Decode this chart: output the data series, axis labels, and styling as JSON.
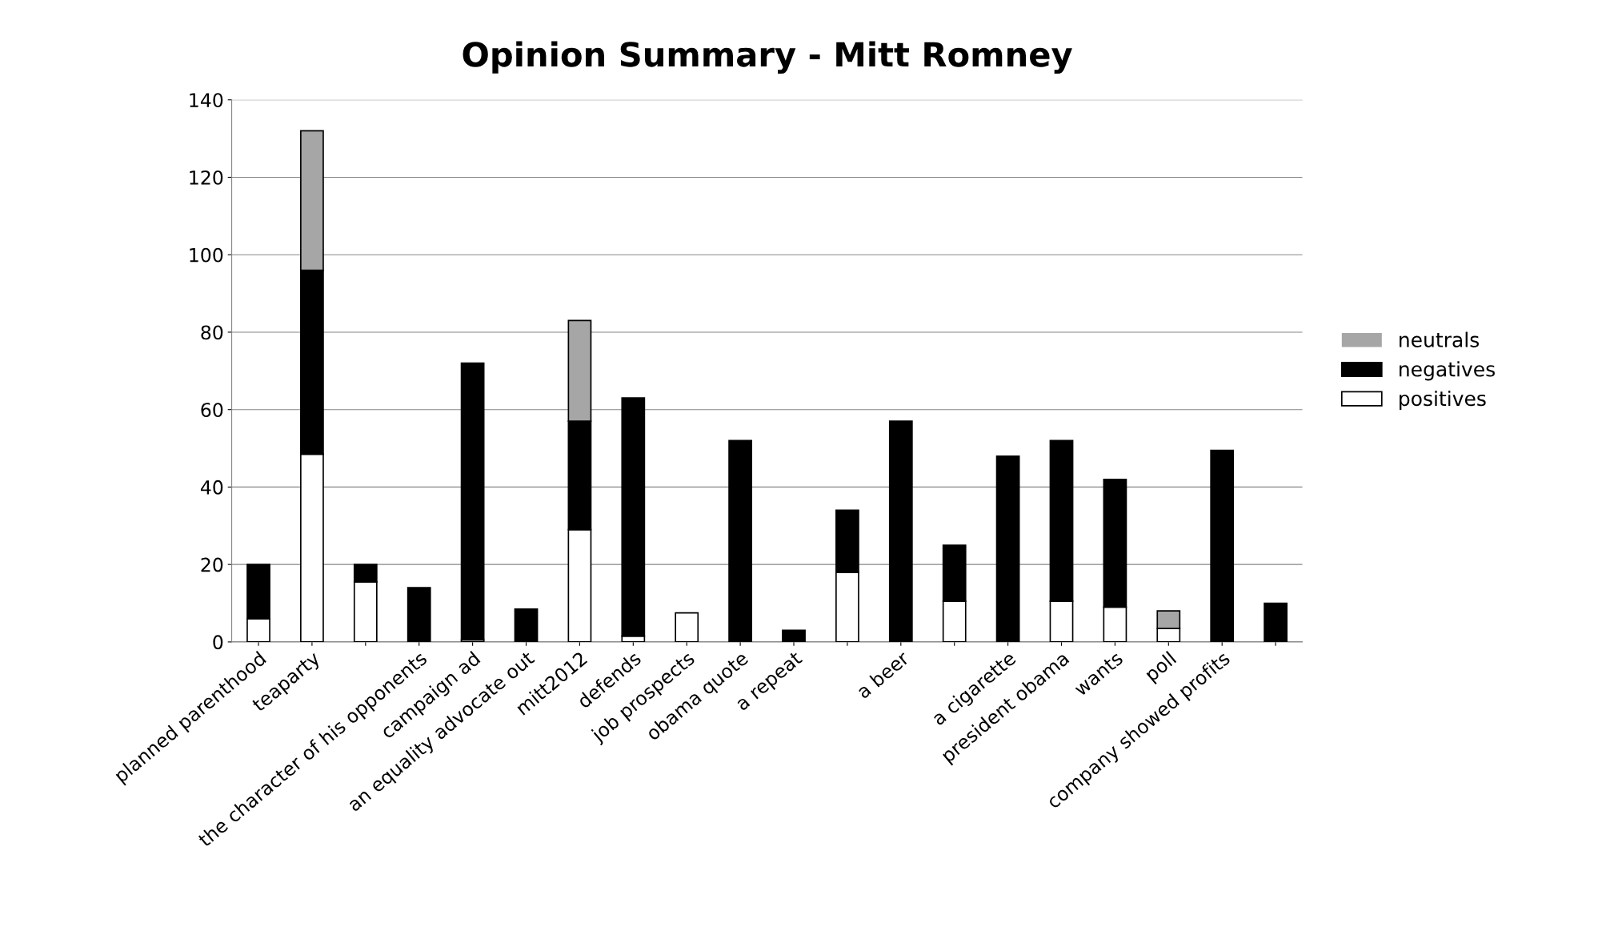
{
  "chart_data": {
    "type": "bar",
    "title": "Opinion Summary - Mitt Romney",
    "stacked": true,
    "legend": "right",
    "grid": "y",
    "categories": [
      "planned parenthood",
      "teaparty",
      null,
      "the character of his opponents",
      "campaign ad",
      "an equality advocate out",
      "mitt2012",
      "defends",
      "job prospects",
      "obama quote",
      "a repeat",
      null,
      "a beer",
      null,
      "a cigarette",
      "president obama",
      "wants",
      "poll",
      "company showed profits",
      null
    ],
    "series": [
      {
        "name": "positives",
        "color": "#ffffff",
        "values": [
          6,
          48.5,
          15.5,
          0,
          0.5,
          0,
          29,
          1.5,
          7.5,
          0,
          0,
          18,
          0,
          10.5,
          0,
          10.5,
          9,
          3.5,
          0,
          0
        ]
      },
      {
        "name": "negatives",
        "color": "#000000",
        "values": [
          14,
          47.5,
          4.5,
          14,
          71.5,
          8.5,
          28,
          61.5,
          0,
          52,
          3,
          16,
          57,
          14.5,
          48,
          41.5,
          33,
          0,
          49.5,
          10
        ]
      },
      {
        "name": "neutrals",
        "color": "#a6a6a6",
        "values": [
          0,
          36,
          0,
          0,
          0,
          0,
          26,
          0,
          0,
          0,
          0,
          0,
          0,
          0,
          0,
          0,
          0,
          4.5,
          0,
          0
        ]
      }
    ],
    "ylim": [
      0,
      140
    ],
    "yticks": [
      0,
      20,
      40,
      60,
      80,
      100,
      120,
      140
    ]
  }
}
